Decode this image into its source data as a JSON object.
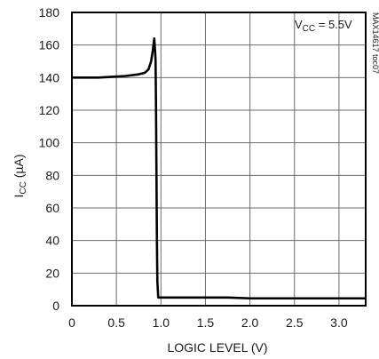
{
  "chart_data": {
    "type": "line",
    "title": "",
    "xlabel": "LOGIC LEVEL (V)",
    "ylabel_main": "I",
    "ylabel_sub": "CC",
    "ylabel_unit": " (µA)",
    "xlim": [
      0,
      3.3
    ],
    "ylim": [
      0,
      180
    ],
    "xticks": [
      0,
      0.5,
      1.0,
      1.5,
      2.0,
      2.5,
      3.0
    ],
    "xtick_labels": [
      "0",
      "0.5",
      "1.0",
      "1.5",
      "2.0",
      "2.5",
      "3.0"
    ],
    "yticks": [
      0,
      20,
      40,
      60,
      80,
      100,
      120,
      140,
      160,
      180
    ],
    "ytick_labels": [
      "0",
      "20",
      "40",
      "60",
      "80",
      "100",
      "120",
      "140",
      "160",
      "180"
    ],
    "grid": true,
    "annotation": {
      "main": "V",
      "sub": "CC",
      "rest": " = 5.5V"
    },
    "part_code": "MAX14617 toc07",
    "series": [
      {
        "x": [
          0,
          0.3,
          0.45,
          0.6,
          0.75,
          0.82,
          0.86,
          0.89,
          0.91,
          0.925,
          0.935,
          0.94,
          0.945,
          0.95,
          0.955,
          0.96,
          0.97,
          0.98,
          1.0,
          1.2,
          1.5,
          1.75,
          2.0,
          2.5,
          3.0,
          3.3
        ],
        "y": [
          140,
          140,
          140.5,
          141,
          142,
          143,
          145,
          150,
          157,
          164,
          156,
          150,
          120,
          80,
          40,
          15,
          5,
          5,
          5,
          5,
          5,
          5,
          4.5,
          4.5,
          4.5,
          4.5
        ]
      }
    ]
  }
}
